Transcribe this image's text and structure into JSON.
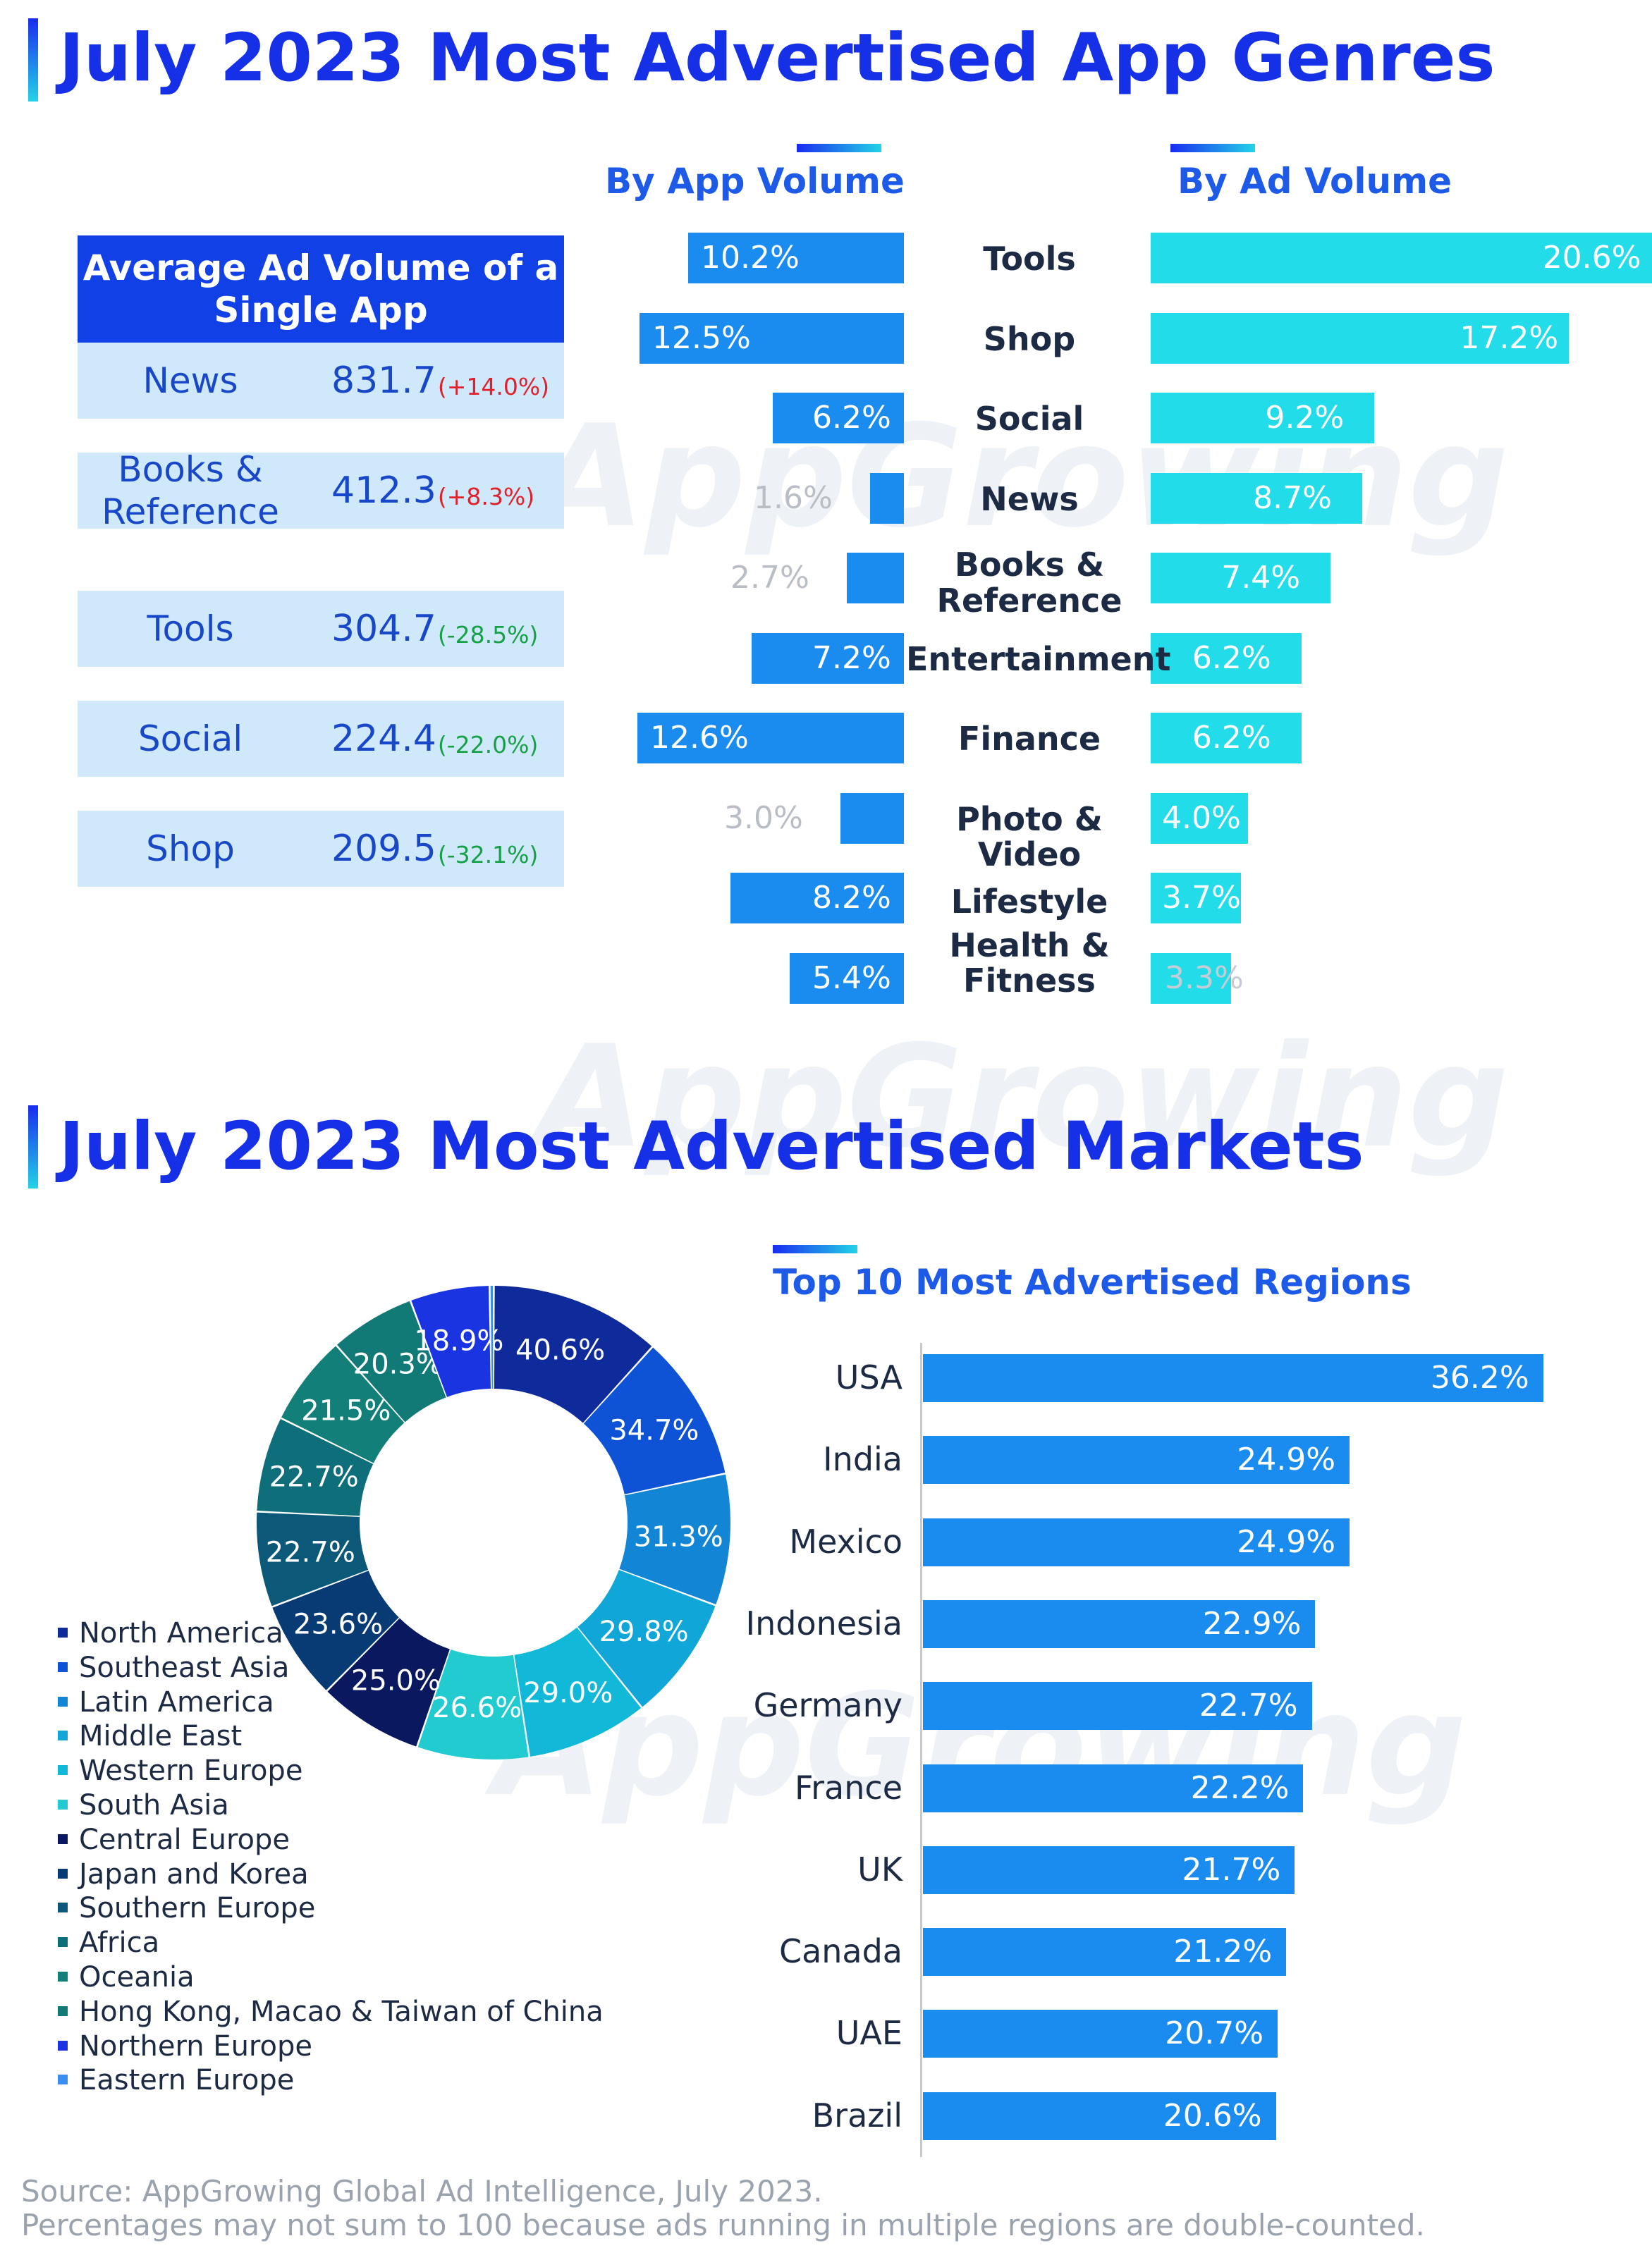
{
  "section1": {
    "title": "July 2023 Most Advertised App Genres"
  },
  "section2": {
    "title": "July 2023 Most Advertised Markets"
  },
  "watermark": "AppGrowing",
  "avg_table": {
    "header": "Average Ad Volume of a Single App",
    "rows": [
      {
        "name": "News",
        "value": "831.7",
        "change": "(+14.0%)",
        "change_color": "#e0202a"
      },
      {
        "name": "Books & Reference",
        "value": "412.3",
        "change": "(+8.3%)",
        "change_color": "#e0202a"
      },
      {
        "name": "Tools",
        "value": "304.7",
        "change": "(-28.5%)",
        "change_color": "#18a048"
      },
      {
        "name": "Social",
        "value": "224.4",
        "change": "(-22.0%)",
        "change_color": "#18a048"
      },
      {
        "name": "Shop",
        "value": "209.5",
        "change": "(-32.1%)",
        "change_color": "#18a048"
      }
    ]
  },
  "chart_data": [
    {
      "type": "bar",
      "orientation": "horizontal-butterfly",
      "categories": [
        "Tools",
        "Shop",
        "Social",
        "News",
        "Books & Reference",
        "Entertainment",
        "Finance",
        "Photo & Video",
        "Lifestyle",
        "Health & Fitness"
      ],
      "category_labels": [
        "Tools",
        "Shop",
        "Social",
        "News",
        "Books &\nReference",
        "Entertainment",
        "Finance",
        "Photo & Video",
        "Lifestyle",
        "Health &\nFitness"
      ],
      "series": [
        {
          "name": "By App Volume",
          "values": [
            10.2,
            12.5,
            6.2,
            1.6,
            2.7,
            7.2,
            12.6,
            3.0,
            8.2,
            5.4
          ],
          "labels": [
            "10.2%",
            "12.5%",
            "6.2%",
            "1.6%",
            "2.7%",
            "7.2%",
            "12.6%",
            "3.0%",
            "8.2%",
            "5.4%"
          ],
          "color": "#1a8cf0"
        },
        {
          "name": "By Ad Volume",
          "values": [
            20.6,
            17.2,
            9.2,
            8.7,
            7.4,
            6.2,
            6.2,
            4.0,
            3.7,
            3.3
          ],
          "labels": [
            "20.6%",
            "17.2%",
            "9.2%",
            "8.7%",
            "7.4%",
            "6.2%",
            "6.2%",
            "4.0%",
            "3.7%",
            "3.3%"
          ],
          "color": "#22dde9"
        }
      ],
      "unit": "%"
    },
    {
      "type": "pie",
      "variant": "donut",
      "categories": [
        "North America",
        "Southeast Asia",
        "Latin America",
        "Middle East",
        "Western Europe",
        "South Asia",
        "Central Europe",
        "Japan and Korea",
        "Southern Europe",
        "Africa",
        "Oceania",
        "Hong Kong, Macao & Taiwan of China",
        "Northern Europe",
        "Eastern Europe"
      ],
      "values": [
        40.6,
        34.7,
        31.3,
        29.8,
        29.0,
        26.6,
        25.0,
        23.6,
        22.7,
        22.7,
        21.5,
        20.3,
        18.9,
        1.0
      ],
      "labels": [
        "40.6%",
        "34.7%",
        "31.3%",
        "29.8%",
        "29.0%",
        "26.6%",
        "25.0%",
        "23.6%",
        "22.7%",
        "22.7%",
        "21.5%",
        "20.3%",
        "18.9%",
        ""
      ],
      "colors": [
        "#0f2a9a",
        "#0e52d6",
        "#1286d4",
        "#10a6d8",
        "#12b8d8",
        "#22cbcf",
        "#0a1860",
        "#083a74",
        "#0b5878",
        "#0e6e7a",
        "#128078",
        "#117a76",
        "#1a34e2",
        "#3a8ef0"
      ],
      "legend": "left"
    },
    {
      "type": "bar",
      "orientation": "horizontal",
      "title": "Top 10 Most Advertised Regions",
      "categories": [
        "USA",
        "India",
        "Mexico",
        "Indonesia",
        "Germany",
        "France",
        "UK",
        "Canada",
        "UAE",
        "Brazil"
      ],
      "values": [
        36.2,
        24.9,
        24.9,
        22.9,
        22.7,
        22.2,
        21.7,
        21.2,
        20.7,
        20.6
      ],
      "labels": [
        "36.2%",
        "24.9%",
        "24.9%",
        "22.9%",
        "22.7%",
        "22.2%",
        "21.7%",
        "21.2%",
        "20.7%",
        "20.6%"
      ],
      "color": "#1a8cf0",
      "unit": "%"
    }
  ],
  "footer": {
    "line1": "Source: AppGrowing Global Ad Intelligence, July 2023.",
    "line2": "Percentages may not sum to 100 because ads running in multiple regions are double-counted."
  }
}
